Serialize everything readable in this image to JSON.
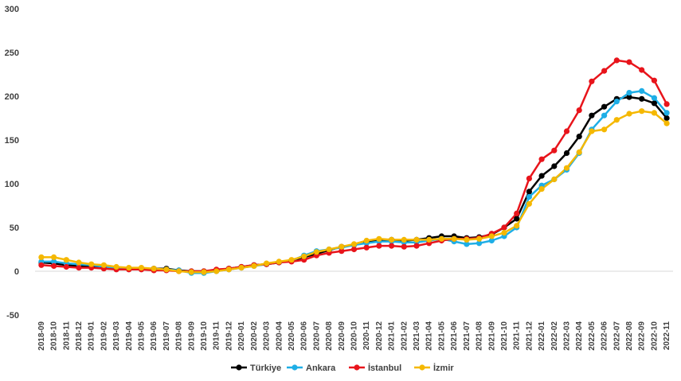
{
  "chart_data": {
    "type": "line",
    "title": "",
    "xlabel": "",
    "ylabel": "",
    "ylim": [
      -50,
      300
    ],
    "yticks": [
      -50,
      0,
      50,
      100,
      150,
      200,
      250,
      300
    ],
    "grid": false,
    "legend_position": "bottom-center",
    "categories": [
      "2018-09",
      "2018-10",
      "2018-11",
      "2018-12",
      "2019-01",
      "2019-02",
      "2019-03",
      "2019-04",
      "2019-05",
      "2019-06",
      "2019-07",
      "2019-08",
      "2019-09",
      "2019-10",
      "2019-11",
      "2019-12",
      "2020-01",
      "2020-02",
      "2020-03",
      "2020-04",
      "2020-05",
      "2020-06",
      "2020-07",
      "2020-08",
      "2020-09",
      "2020-10",
      "2020-11",
      "2020-12",
      "2021-01",
      "2021-02",
      "2021-03",
      "2021-04",
      "2021-05",
      "2021-06",
      "2021-07",
      "2021-08",
      "2021-09",
      "2021-10",
      "2021-11",
      "2021-12",
      "2022-01",
      "2022-02",
      "2022-03",
      "2022-04",
      "2022-05",
      "2022-06",
      "2022-07",
      "2022-08",
      "2022-09",
      "2022-10",
      "2022-11"
    ],
    "series": [
      {
        "name": "Türkiye",
        "color": "#000000",
        "values": [
          10,
          9,
          7,
          6,
          5,
          4,
          4,
          3,
          3,
          3,
          3,
          1,
          0,
          0,
          1,
          3,
          5,
          7,
          8,
          10,
          12,
          16,
          20,
          24,
          28,
          30,
          33,
          35,
          36,
          35,
          36,
          38,
          40,
          40,
          38,
          39,
          42,
          50,
          60,
          91,
          109,
          120,
          135,
          154,
          178,
          188,
          197,
          199,
          197,
          192,
          175
        ]
      },
      {
        "name": "Ankara",
        "color": "#1eaee6",
        "values": [
          11,
          11,
          9,
          8,
          7,
          5,
          4,
          3,
          3,
          2,
          2,
          1,
          -2,
          -2,
          0,
          2,
          4,
          6,
          8,
          10,
          12,
          18,
          23,
          25,
          27,
          30,
          32,
          34,
          34,
          33,
          33,
          35,
          37,
          34,
          31,
          32,
          35,
          40,
          50,
          85,
          98,
          105,
          116,
          135,
          162,
          178,
          194,
          204,
          206,
          198,
          181
        ]
      },
      {
        "name": "İstanbul",
        "color": "#e8141b",
        "values": [
          7,
          6,
          5,
          4,
          4,
          3,
          2,
          2,
          2,
          1,
          1,
          0,
          0,
          0,
          2,
          3,
          5,
          7,
          8,
          10,
          11,
          13,
          18,
          21,
          23,
          25,
          27,
          29,
          29,
          28,
          29,
          32,
          35,
          37,
          37,
          38,
          43,
          50,
          66,
          106,
          128,
          138,
          160,
          184,
          217,
          229,
          241,
          239,
          230,
          218,
          191
        ]
      },
      {
        "name": "İzmir",
        "color": "#f5b800",
        "values": [
          16,
          16,
          13,
          10,
          8,
          7,
          5,
          4,
          4,
          3,
          2,
          0,
          -1,
          -1,
          0,
          2,
          4,
          6,
          9,
          11,
          13,
          17,
          22,
          25,
          28,
          31,
          35,
          37,
          36,
          36,
          36,
          36,
          37,
          37,
          36,
          37,
          40,
          44,
          52,
          77,
          94,
          105,
          118,
          136,
          160,
          162,
          173,
          180,
          183,
          181,
          169
        ]
      }
    ]
  }
}
